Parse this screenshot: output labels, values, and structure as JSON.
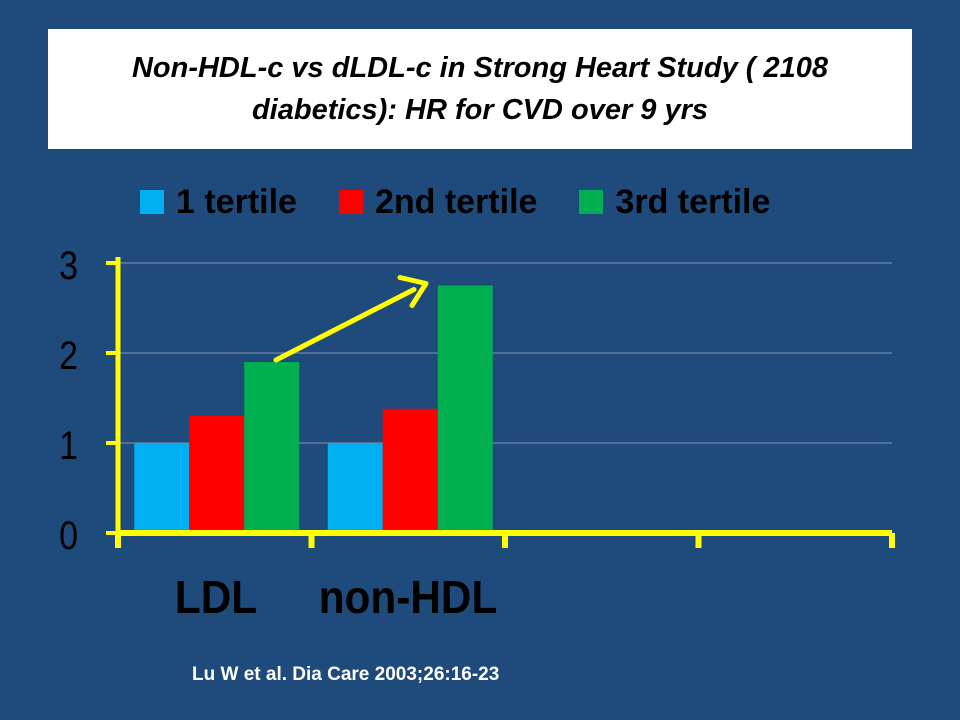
{
  "slide": {
    "title_line1": "Non-HDL-c vs dLDL-c in Strong Heart Study ( 2108",
    "title_line2": "diabetics): HR for CVD over 9 yrs",
    "citation": "Lu W et al. Dia Care 2003;26:16-23"
  },
  "colors": {
    "background": "#1f4a7c",
    "axis": "#ffff00",
    "arrow": "#ffff00",
    "series": [
      "#00b0f0",
      "#ff0000",
      "#00b050"
    ]
  },
  "chart_data": {
    "type": "bar",
    "title": "Non-HDL-c vs dLDL-c in Strong Heart Study ( 2108 diabetics): HR for CVD over 9 yrs",
    "categories": [
      "LDL",
      "non-HDL"
    ],
    "series": [
      {
        "name": "1 tertile",
        "values": [
          1.0,
          1.0
        ]
      },
      {
        "name": "2nd tertile",
        "values": [
          1.3,
          1.38
        ]
      },
      {
        "name": "3rd tertile",
        "values": [
          1.9,
          2.75
        ]
      }
    ],
    "ylim": [
      0,
      3
    ],
    "yticks": [
      "0",
      "1",
      "2",
      "3"
    ],
    "category_slots": 4,
    "grid": true,
    "legend_position": "top",
    "annotation": "yellow arrow from LDL 3rd tertile bar to non-HDL 3rd tertile bar"
  }
}
